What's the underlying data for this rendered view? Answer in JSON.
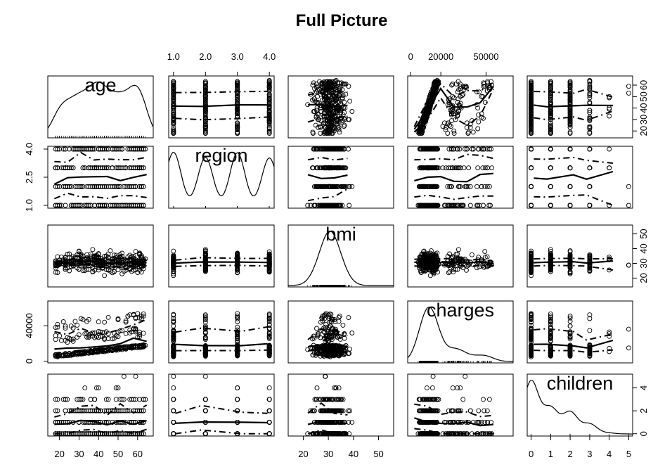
{
  "chart_data": {
    "type": "scatter",
    "title": "Full Picture",
    "variables": [
      {
        "name": "age",
        "range": [
          18,
          64
        ],
        "lim": [
          14,
          68
        ],
        "ticks": [
          "20",
          "30",
          "40",
          "50",
          "60"
        ],
        "tick_values": [
          20,
          30,
          40,
          50,
          60
        ]
      },
      {
        "name": "region",
        "range": [
          1,
          4
        ],
        "lim": [
          0.85,
          4.15
        ],
        "ticks": [
          "1.0",
          "2.0",
          "3.0",
          "4.0"
        ],
        "tick_values": [
          1,
          2,
          3,
          4
        ],
        "left_ticks": [
          "1.0",
          "2.5",
          "4.0"
        ],
        "left_tick_values": [
          1,
          2.5,
          4
        ]
      },
      {
        "name": "bmi",
        "range": [
          16,
          53
        ],
        "lim": [
          14,
          56
        ],
        "ticks": [
          "20",
          "30",
          "40",
          "50"
        ],
        "tick_values": [
          20,
          30,
          40,
          50
        ]
      },
      {
        "name": "charges",
        "range": [
          1122,
          63770
        ],
        "lim": [
          -2000,
          68000
        ],
        "ticks": [
          "0",
          "20000",
          "50000"
        ],
        "tick_values": [
          0,
          20000,
          50000
        ],
        "left_ticks": [
          "0",
          "40000"
        ],
        "left_tick_values": [
          0,
          40000
        ]
      },
      {
        "name": "children",
        "range": [
          0,
          5
        ],
        "lim": [
          -0.2,
          5.2
        ],
        "ticks": [
          "0",
          "1",
          "2",
          "3",
          "4",
          "5"
        ],
        "tick_values": [
          0,
          1,
          2,
          3,
          4,
          5
        ],
        "right_ticks": [
          "0",
          "2",
          "4"
        ],
        "right_tick_values": [
          0,
          2,
          4
        ]
      }
    ],
    "axis_layout": {
      "top": [
        "region",
        "charges"
      ],
      "bottom": [
        "age",
        "bmi",
        "children"
      ],
      "left": [
        "region",
        "charges"
      ],
      "right": [
        "age",
        "bmi",
        "children"
      ]
    },
    "diagonal": "kernel density",
    "off_diagonal": "scatter with smoothed fit line and spread lines",
    "colors": {
      "points": "#000000",
      "lines": "#000000",
      "background": "#ffffff"
    }
  }
}
